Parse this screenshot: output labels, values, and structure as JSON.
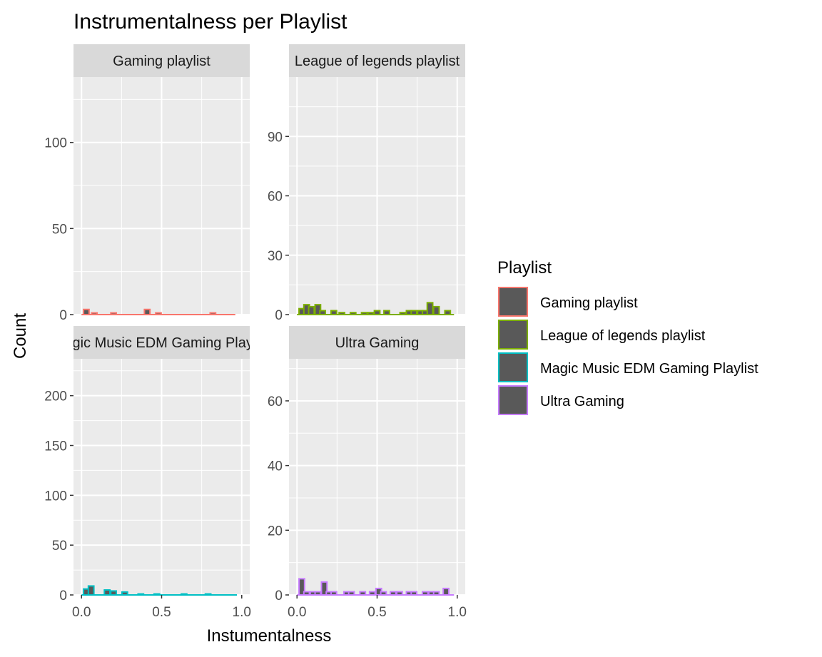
{
  "chart_data": {
    "type": "bar",
    "title": "Instrumentalness per Playlist",
    "xlabel": "Instumentalness",
    "ylabel": "Count",
    "legend": {
      "title": "Playlist",
      "placement": "right",
      "entries": [
        {
          "name": "Gaming playlist",
          "color": "#F8766D"
        },
        {
          "name": "League of legends playlist",
          "color": "#7CAE00"
        },
        {
          "name": "Magic Music EDM Gaming Playlist",
          "color": "#00BFC4"
        },
        {
          "name": "Ultra Gaming",
          "color": "#C77CFF"
        }
      ]
    },
    "bar_fill": "#595959",
    "grid": true,
    "bin_width": 0.0345,
    "panels": [
      {
        "strip": "Gaming playlist",
        "color": "#F8766D",
        "xlim": [
          -0.05,
          1.05
        ],
        "ylim": [
          0,
          138
        ],
        "xticks": [
          "0.0",
          "0.5",
          "1.0"
        ],
        "xtick_values": [
          0,
          0.5,
          1.0
        ],
        "yticks": [
          "0",
          "50",
          "100"
        ],
        "ytick_values": [
          0,
          50,
          100
        ],
        "bins": [
          {
            "x": 0.03,
            "count": 3
          },
          {
            "x": 0.08,
            "count": 1
          },
          {
            "x": 0.2,
            "count": 1
          },
          {
            "x": 0.41,
            "count": 3
          },
          {
            "x": 0.48,
            "count": 1
          },
          {
            "x": 0.82,
            "count": 1
          }
        ],
        "baseline": [
          0.0,
          0.96
        ]
      },
      {
        "strip": "League of legends playlist",
        "color": "#7CAE00",
        "xlim": [
          -0.05,
          1.05
        ],
        "ylim": [
          0,
          120
        ],
        "xticks": [
          "0.0",
          "0.5",
          "1.0"
        ],
        "xtick_values": [
          0,
          0.5,
          1.0
        ],
        "yticks": [
          "0",
          "30",
          "60",
          "90"
        ],
        "ytick_values": [
          0,
          30,
          60,
          90
        ],
        "bins": [
          {
            "x": 0.03,
            "count": 3
          },
          {
            "x": 0.06,
            "count": 5
          },
          {
            "x": 0.09,
            "count": 4
          },
          {
            "x": 0.13,
            "count": 5
          },
          {
            "x": 0.16,
            "count": 2
          },
          {
            "x": 0.23,
            "count": 2
          },
          {
            "x": 0.28,
            "count": 1
          },
          {
            "x": 0.35,
            "count": 1
          },
          {
            "x": 0.42,
            "count": 1
          },
          {
            "x": 0.46,
            "count": 1
          },
          {
            "x": 0.5,
            "count": 2
          },
          {
            "x": 0.56,
            "count": 2
          },
          {
            "x": 0.66,
            "count": 1
          },
          {
            "x": 0.7,
            "count": 2
          },
          {
            "x": 0.73,
            "count": 2
          },
          {
            "x": 0.77,
            "count": 2
          },
          {
            "x": 0.8,
            "count": 2
          },
          {
            "x": 0.83,
            "count": 6
          },
          {
            "x": 0.87,
            "count": 4
          },
          {
            "x": 0.94,
            "count": 2
          }
        ],
        "baseline": [
          0.0,
          0.98
        ]
      },
      {
        "strip": "Magic Music EDM Gaming Playlist",
        "color": "#00BFC4",
        "xlim": [
          -0.05,
          1.05
        ],
        "ylim": [
          0,
          237
        ],
        "xticks": [
          "0.0",
          "0.5",
          "1.0"
        ],
        "xtick_values": [
          0,
          0.5,
          1.0
        ],
        "yticks": [
          "0",
          "50",
          "100",
          "150",
          "200"
        ],
        "ytick_values": [
          0,
          50,
          100,
          150,
          200
        ],
        "bins": [
          {
            "x": 0.03,
            "count": 6
          },
          {
            "x": 0.06,
            "count": 9
          },
          {
            "x": 0.16,
            "count": 5
          },
          {
            "x": 0.2,
            "count": 4
          },
          {
            "x": 0.27,
            "count": 3
          },
          {
            "x": 0.37,
            "count": 1
          },
          {
            "x": 0.47,
            "count": 1
          },
          {
            "x": 0.64,
            "count": 1
          },
          {
            "x": 0.79,
            "count": 1
          }
        ],
        "baseline": [
          0.0,
          0.97
        ]
      },
      {
        "strip": "Ultra Gaming",
        "color": "#C77CFF",
        "xlim": [
          -0.05,
          1.05
        ],
        "ylim": [
          0,
          73
        ],
        "xticks": [
          "0.0",
          "0.5",
          "1.0"
        ],
        "xtick_values": [
          0,
          0.5,
          1.0
        ],
        "yticks": [
          "0",
          "20",
          "40",
          "60"
        ],
        "ytick_values": [
          0,
          20,
          40,
          60
        ],
        "bins": [
          {
            "x": 0.03,
            "count": 5
          },
          {
            "x": 0.06,
            "count": 1
          },
          {
            "x": 0.1,
            "count": 1
          },
          {
            "x": 0.13,
            "count": 1
          },
          {
            "x": 0.17,
            "count": 4
          },
          {
            "x": 0.2,
            "count": 1
          },
          {
            "x": 0.23,
            "count": 1
          },
          {
            "x": 0.31,
            "count": 1
          },
          {
            "x": 0.34,
            "count": 1
          },
          {
            "x": 0.41,
            "count": 1
          },
          {
            "x": 0.47,
            "count": 1
          },
          {
            "x": 0.51,
            "count": 2
          },
          {
            "x": 0.54,
            "count": 1
          },
          {
            "x": 0.6,
            "count": 1
          },
          {
            "x": 0.64,
            "count": 1
          },
          {
            "x": 0.7,
            "count": 1
          },
          {
            "x": 0.73,
            "count": 1
          },
          {
            "x": 0.8,
            "count": 1
          },
          {
            "x": 0.84,
            "count": 1
          },
          {
            "x": 0.87,
            "count": 1
          },
          {
            "x": 0.93,
            "count": 2
          }
        ],
        "baseline": [
          0.0,
          0.98
        ]
      }
    ]
  }
}
